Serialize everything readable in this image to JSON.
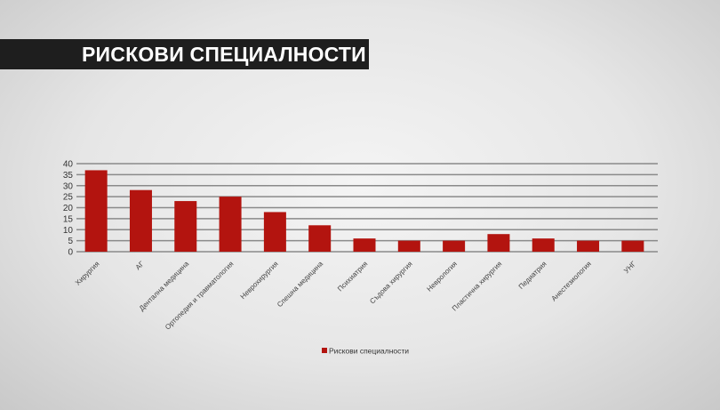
{
  "header": {
    "title": "РИСКОВИ СПЕЦИАЛНОСТИ"
  },
  "chart_data": {
    "type": "bar",
    "title": "",
    "categories": [
      "Хирургия",
      "АГ",
      "Дентална медицина",
      "Ортопедия и травматология",
      "Неврохирургия",
      "Спешна медицина",
      "Психиатрия",
      "Съдова хирургия",
      "Неврология",
      "Пластична хирургия",
      "Педиатрия",
      "Анестезиология",
      "УНГ"
    ],
    "series": [
      {
        "name": "Рискови специалности",
        "values": [
          37,
          28,
          23,
          25,
          18,
          12,
          6,
          5,
          5,
          8,
          6,
          5,
          5
        ],
        "color": "#b3140f"
      }
    ],
    "yticks": [
      0,
      5,
      10,
      15,
      20,
      25,
      30,
      35,
      40
    ],
    "ylim": [
      0,
      40
    ],
    "grid": true,
    "legend": "bottom"
  }
}
